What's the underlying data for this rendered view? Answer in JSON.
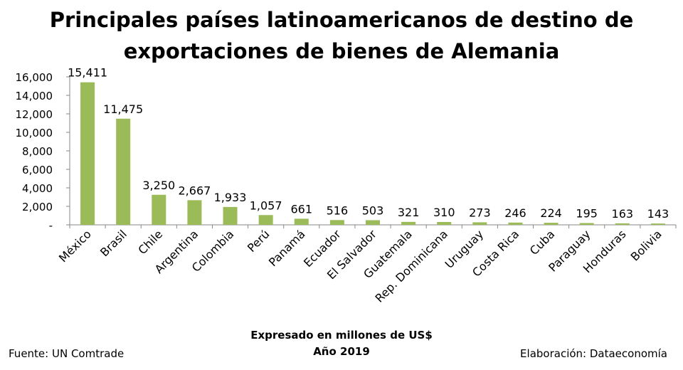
{
  "chart_data": {
    "type": "bar",
    "title": "Principales países latinoamericanos de destino de exportaciones de bienes de Alemania",
    "categories": [
      "México",
      "Brasil",
      "Chile",
      "Argentina",
      "Colombia",
      "Perú",
      "Panamá",
      "Ecuador",
      "El Salvador",
      "Guatemala",
      "Rep. Dominicana",
      "Uruguay",
      "Costa Rica",
      "Cuba",
      "Paraguay",
      "Honduras",
      "Bolivia"
    ],
    "values": [
      15411,
      11475,
      3250,
      2667,
      1933,
      1057,
      661,
      516,
      503,
      321,
      310,
      273,
      246,
      224,
      195,
      163,
      143
    ],
    "data_labels": [
      "15,411",
      "11,475",
      "3,250",
      "2,667",
      "1,933",
      "1,057",
      "661",
      "516",
      "503",
      "321",
      "310",
      "273",
      "246",
      "224",
      "195",
      "163",
      "143"
    ],
    "ylim": [
      0,
      16000
    ],
    "y_ticks": [
      0,
      2000,
      4000,
      6000,
      8000,
      10000,
      12000,
      14000,
      16000
    ],
    "y_tick_labels": [
      "-",
      "2,000",
      "4,000",
      "6,000",
      "8,000",
      "10,000",
      "12,000",
      "14,000",
      "16,000"
    ],
    "xlabel": "Expresado en millones de US$",
    "subtitle": "Año 2019",
    "grid": false,
    "legend": "none",
    "bar_color": "#9BBB59"
  },
  "footer": {
    "source": "Fuente: UN Comtrade",
    "credit": "Elaboración: Dataeconomía"
  }
}
